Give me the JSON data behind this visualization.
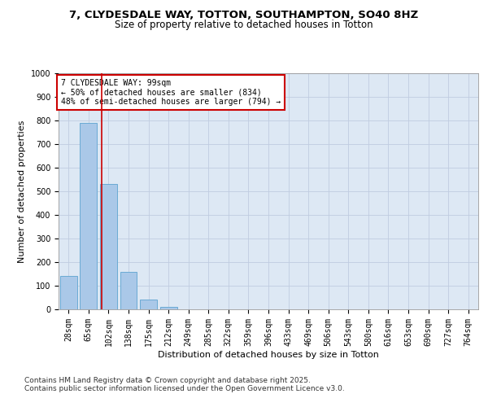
{
  "title_line1": "7, CLYDESDALE WAY, TOTTON, SOUTHAMPTON, SO40 8HZ",
  "title_line2": "Size of property relative to detached houses in Totton",
  "xlabel": "Distribution of detached houses by size in Totton",
  "ylabel": "Number of detached properties",
  "categories": [
    "28sqm",
    "65sqm",
    "102sqm",
    "138sqm",
    "175sqm",
    "212sqm",
    "249sqm",
    "285sqm",
    "322sqm",
    "359sqm",
    "396sqm",
    "433sqm",
    "469sqm",
    "506sqm",
    "543sqm",
    "580sqm",
    "616sqm",
    "653sqm",
    "690sqm",
    "727sqm",
    "764sqm"
  ],
  "values": [
    140,
    790,
    530,
    160,
    40,
    10,
    0,
    0,
    0,
    0,
    0,
    0,
    0,
    0,
    0,
    0,
    0,
    0,
    0,
    0,
    0
  ],
  "bar_color": "#aac8e8",
  "bar_edge_color": "#6aaad4",
  "vline_color": "#cc0000",
  "annotation_text": "7 CLYDESDALE WAY: 99sqm\n← 50% of detached houses are smaller (834)\n48% of semi-detached houses are larger (794) →",
  "annotation_box_color": "#ffffff",
  "annotation_box_edge": "#cc0000",
  "ylim": [
    0,
    1000
  ],
  "yticks": [
    0,
    100,
    200,
    300,
    400,
    500,
    600,
    700,
    800,
    900,
    1000
  ],
  "grid_color": "#c0cce0",
  "background_color": "#dde8f4",
  "footer_line1": "Contains HM Land Registry data © Crown copyright and database right 2025.",
  "footer_line2": "Contains public sector information licensed under the Open Government Licence v3.0.",
  "title_fontsize": 9.5,
  "subtitle_fontsize": 8.5,
  "axis_label_fontsize": 8,
  "tick_fontsize": 7,
  "annotation_fontsize": 7,
  "footer_fontsize": 6.5
}
